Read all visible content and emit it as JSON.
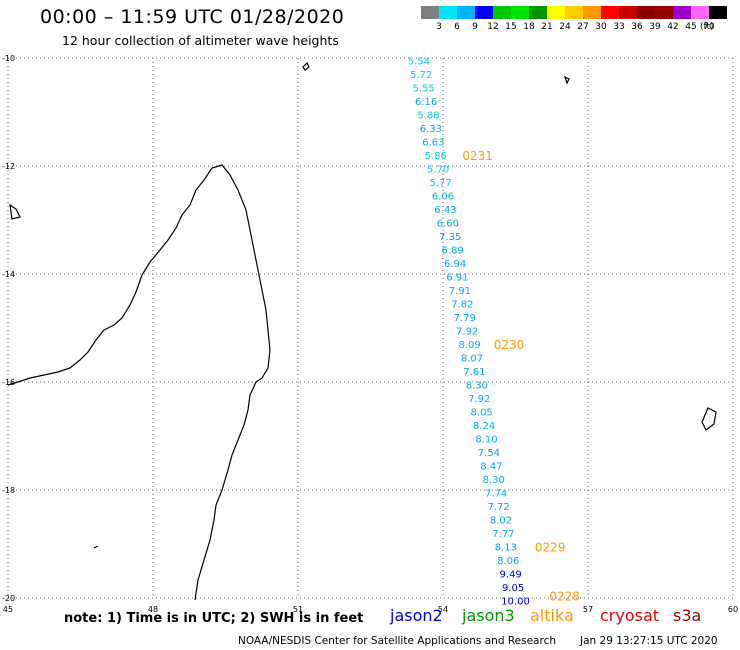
{
  "title": "00:00 – 11:59 UTC 01/28/2020",
  "subtitle": "12 hour collection of altimeter wave heights",
  "legend": {
    "colors": [
      "#7f7f7f",
      "#00e5ff",
      "#00b4ff",
      "#0000ff",
      "#00c800",
      "#00e600",
      "#009600",
      "#ffff00",
      "#ffcc00",
      "#ff9900",
      "#ff0000",
      "#cc0000",
      "#8b0000",
      "#990000",
      "#9900cc",
      "#ff66ff",
      "#000000"
    ],
    "labels": [
      "3",
      "6",
      "9",
      "12",
      "15",
      "18",
      "21",
      "24",
      "27",
      "30",
      "33",
      "36",
      "39",
      "42",
      "45",
      "70"
    ],
    "units": "(ft)"
  },
  "note": "note: 1) Time is in UTC; 2) SWH is in feet",
  "satellites": [
    {
      "name": "jason2",
      "color": "#0000cc"
    },
    {
      "name": "jason3",
      "color": "#009900"
    },
    {
      "name": "altika",
      "color": "#ff9900"
    },
    {
      "name": "cryosat",
      "color": "#e60000"
    },
    {
      "name": "s3a",
      "color": "#990000"
    }
  ],
  "credit": "NOAA/NESDIS Center for Satellite Applications and Research",
  "timestamp": "Jan 29 13:27:15 UTC 2020",
  "chart_data": {
    "type": "scatter",
    "xlabel": "",
    "ylabel": "",
    "xlim": [
      45,
      60
    ],
    "ylim": [
      -20,
      -10
    ],
    "x_ticks": [
      "45",
      "48",
      "51",
      "54",
      "57",
      "60"
    ],
    "y_ticks": [
      "-10",
      "-12",
      "-14",
      "-16",
      "-18",
      "-20"
    ],
    "grid": true,
    "points": [
      {
        "lon": 53.5,
        "lat": -10.05,
        "v": "5.54"
      },
      {
        "lon": 53.55,
        "lat": -10.3,
        "v": "5.72"
      },
      {
        "lon": 53.6,
        "lat": -10.55,
        "v": "5.55"
      },
      {
        "lon": 53.65,
        "lat": -10.8,
        "v": "6.16"
      },
      {
        "lon": 53.7,
        "lat": -11.05,
        "v": "5.88"
      },
      {
        "lon": 53.75,
        "lat": -11.3,
        "v": "6.33"
      },
      {
        "lon": 53.8,
        "lat": -11.55,
        "v": "6.63"
      },
      {
        "lon": 53.85,
        "lat": -11.8,
        "v": "5.86"
      },
      {
        "lon": 53.9,
        "lat": -12.05,
        "v": "5.70"
      },
      {
        "lon": 53.95,
        "lat": -12.3,
        "v": "5.77"
      },
      {
        "lon": 54.0,
        "lat": -12.55,
        "v": "6.06"
      },
      {
        "lon": 54.05,
        "lat": -12.8,
        "v": "6.43"
      },
      {
        "lon": 54.1,
        "lat": -13.05,
        "v": "6.60"
      },
      {
        "lon": 54.15,
        "lat": -13.3,
        "v": "7.35"
      },
      {
        "lon": 54.2,
        "lat": -13.55,
        "v": "6.89"
      },
      {
        "lon": 54.25,
        "lat": -13.8,
        "v": "6.94"
      },
      {
        "lon": 54.3,
        "lat": -14.05,
        "v": "6.91"
      },
      {
        "lon": 54.35,
        "lat": -14.3,
        "v": "7.91"
      },
      {
        "lon": 54.4,
        "lat": -14.55,
        "v": "7.82"
      },
      {
        "lon": 54.45,
        "lat": -14.8,
        "v": "7.79"
      },
      {
        "lon": 54.5,
        "lat": -15.05,
        "v": "7.92"
      },
      {
        "lon": 54.55,
        "lat": -15.3,
        "v": "8.09"
      },
      {
        "lon": 54.6,
        "lat": -15.55,
        "v": "8.07"
      },
      {
        "lon": 54.65,
        "lat": -15.8,
        "v": "7.61"
      },
      {
        "lon": 54.7,
        "lat": -16.05,
        "v": "8.30"
      },
      {
        "lon": 54.75,
        "lat": -16.3,
        "v": "7.92"
      },
      {
        "lon": 54.8,
        "lat": -16.55,
        "v": "8.05"
      },
      {
        "lon": 54.85,
        "lat": -16.8,
        "v": "8.24"
      },
      {
        "lon": 54.9,
        "lat": -17.05,
        "v": "8.10"
      },
      {
        "lon": 54.95,
        "lat": -17.3,
        "v": "7.54"
      },
      {
        "lon": 55.0,
        "lat": -17.55,
        "v": "8.47"
      },
      {
        "lon": 55.05,
        "lat": -17.8,
        "v": "8.30"
      },
      {
        "lon": 55.1,
        "lat": -18.05,
        "v": "7.74"
      },
      {
        "lon": 55.15,
        "lat": -18.3,
        "v": "7.72"
      },
      {
        "lon": 55.2,
        "lat": -18.55,
        "v": "8.02"
      },
      {
        "lon": 55.25,
        "lat": -18.8,
        "v": "7.77"
      },
      {
        "lon": 55.3,
        "lat": -19.05,
        "v": "8.13"
      },
      {
        "lon": 55.35,
        "lat": -19.3,
        "v": "8.06"
      },
      {
        "lon": 55.4,
        "lat": -19.55,
        "v": "9.49"
      },
      {
        "lon": 55.45,
        "lat": -19.8,
        "v": "9.05"
      },
      {
        "lon": 55.5,
        "lat": -20.05,
        "v": "10.00"
      }
    ],
    "time_labels": [
      {
        "lon": 54.4,
        "lat": -11.8,
        "text": "0231"
      },
      {
        "lon": 55.05,
        "lat": -15.3,
        "text": "0230"
      },
      {
        "lon": 55.9,
        "lat": -19.05,
        "text": "0229"
      },
      {
        "lon": 56.2,
        "lat": -19.95,
        "text": "0228"
      }
    ]
  }
}
